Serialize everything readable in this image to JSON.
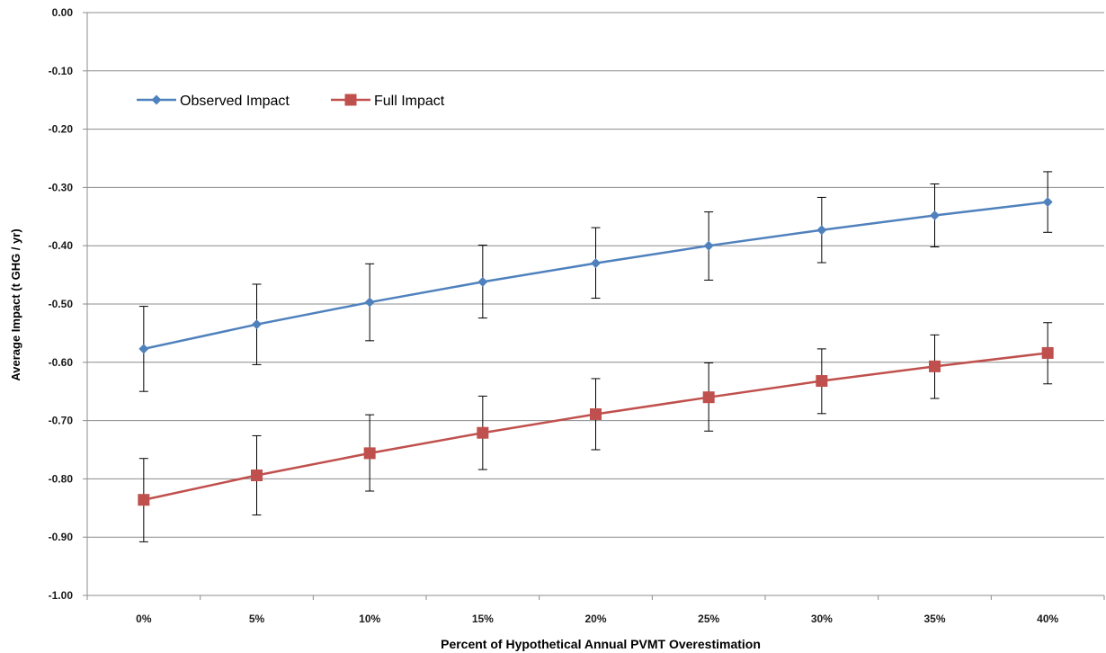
{
  "chart_data": {
    "type": "line",
    "title": "",
    "xlabel": "Percent of Hypothetical Annual PVMT Overestimation",
    "ylabel": "Average Impact (t GHG / yr)",
    "categories": [
      "0%",
      "5%",
      "10%",
      "15%",
      "20%",
      "25%",
      "30%",
      "35%",
      "40%"
    ],
    "y_ticks": [
      "0.00",
      "-0.10",
      "-0.20",
      "-0.30",
      "-0.40",
      "-0.50",
      "-0.60",
      "-0.70",
      "-0.80",
      "-0.90",
      "-1.00"
    ],
    "ylim": [
      -1.0,
      0.0
    ],
    "grid": "horizontal",
    "legend_position": "top-left",
    "series": [
      {
        "name": "Observed Impact",
        "color": "#4F81BD",
        "marker": "diamond",
        "values": [
          -0.577,
          -0.535,
          -0.497,
          -0.462,
          -0.43,
          -0.4,
          -0.373,
          -0.348,
          -0.325
        ],
        "error_low": [
          -0.65,
          -0.604,
          -0.563,
          -0.524,
          -0.49,
          -0.459,
          -0.429,
          -0.402,
          -0.377
        ],
        "error_high": [
          -0.504,
          -0.466,
          -0.431,
          -0.399,
          -0.369,
          -0.342,
          -0.317,
          -0.294,
          -0.273
        ]
      },
      {
        "name": "Full Impact",
        "color": "#C0504D",
        "marker": "square",
        "values": [
          -0.836,
          -0.794,
          -0.756,
          -0.721,
          -0.689,
          -0.66,
          -0.632,
          -0.607,
          -0.584
        ],
        "error_low": [
          -0.908,
          -0.862,
          -0.821,
          -0.784,
          -0.75,
          -0.718,
          -0.688,
          -0.662,
          -0.637
        ],
        "error_high": [
          -0.765,
          -0.726,
          -0.69,
          -0.658,
          -0.628,
          -0.601,
          -0.577,
          -0.553,
          -0.532
        ]
      }
    ]
  }
}
